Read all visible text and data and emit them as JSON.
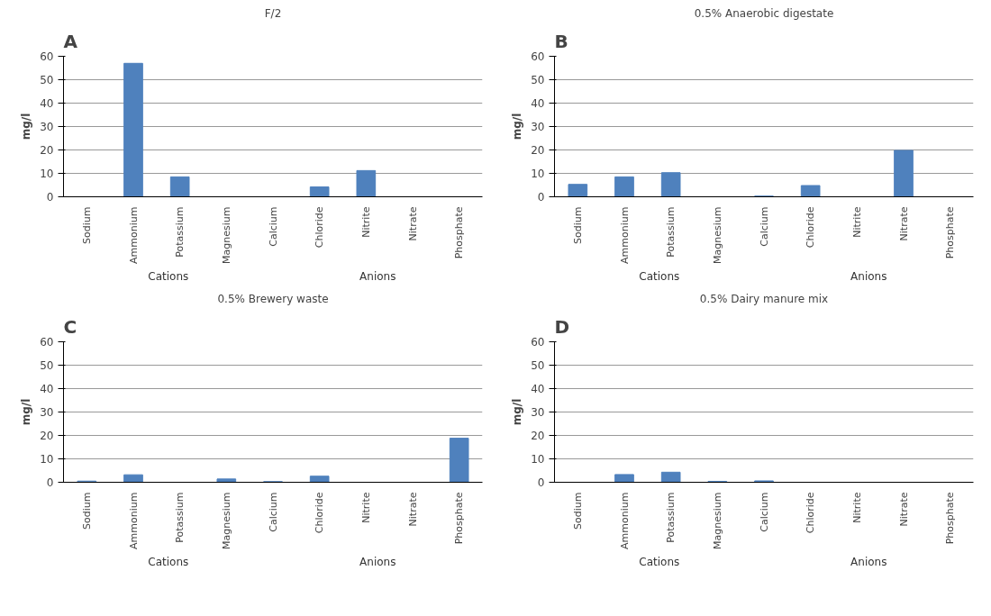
{
  "chart_data": [
    {
      "type": "bar",
      "title": "F/2",
      "ylabel": "mg/l",
      "categories": [
        "Sodium",
        "Ammonium",
        "Potassium",
        "Magnesium",
        "Calcium",
        "Chloride",
        "Nitrite",
        "Nitrate",
        "Phosphate"
      ],
      "values": [
        0,
        57,
        8.5,
        0,
        0,
        4.2,
        11.2,
        0,
        0
      ],
      "color": "#4f81bd",
      "ylim": [
        0,
        60
      ],
      "yticks": [
        0,
        10,
        20,
        30,
        40,
        50,
        60
      ],
      "grid": "y",
      "annotations": [
        "A",
        "Cations",
        "Anions"
      ]
    },
    {
      "type": "bar",
      "title": "0.5% Anaerobic digestate",
      "ylabel": "mg/l",
      "categories": [
        "Sodium",
        "Ammonium",
        "Potassium",
        "Magnesium",
        "Calcium",
        "Chloride",
        "Nitrite",
        "Nitrate",
        "Phosphate"
      ],
      "values": [
        5.3,
        8.5,
        10.3,
        0,
        0.3,
        4.8,
        0,
        19.8,
        0
      ],
      "color": "#4f81bd",
      "ylim": [
        0,
        60
      ],
      "yticks": [
        0,
        10,
        20,
        30,
        40,
        50,
        60
      ],
      "grid": "y",
      "annotations": [
        "B",
        "Cations",
        "Anions"
      ]
    },
    {
      "type": "bar",
      "title": "0.5% Brewery waste",
      "ylabel": "mg/l",
      "categories": [
        "Sodium",
        "Ammonium",
        "Potassium",
        "Magnesium",
        "Calcium",
        "Chloride",
        "Nitrite",
        "Nitrate",
        "Phosphate"
      ],
      "values": [
        0.5,
        3.2,
        0,
        1.4,
        0.3,
        2.6,
        0,
        0,
        18.8
      ],
      "color": "#4f81bd",
      "ylim": [
        0,
        60
      ],
      "yticks": [
        0,
        10,
        20,
        30,
        40,
        50,
        60
      ],
      "grid": "y",
      "annotations": [
        "C",
        "Cations",
        "Anions"
      ]
    },
    {
      "type": "bar",
      "title": "0.5% Dairy manure mix",
      "ylabel": "mg/l",
      "categories": [
        "Sodium",
        "Ammonium",
        "Potassium",
        "Magnesium",
        "Calcium",
        "Chloride",
        "Nitrite",
        "Nitrate",
        "Phosphate"
      ],
      "values": [
        0,
        3.3,
        4.3,
        0.4,
        0.6,
        0,
        0,
        0,
        0
      ],
      "color": "#4f81bd",
      "ylim": [
        0,
        60
      ],
      "yticks": [
        0,
        10,
        20,
        30,
        40,
        50,
        60
      ],
      "grid": "y",
      "annotations": [
        "D",
        "Cations",
        "Anions"
      ]
    }
  ]
}
